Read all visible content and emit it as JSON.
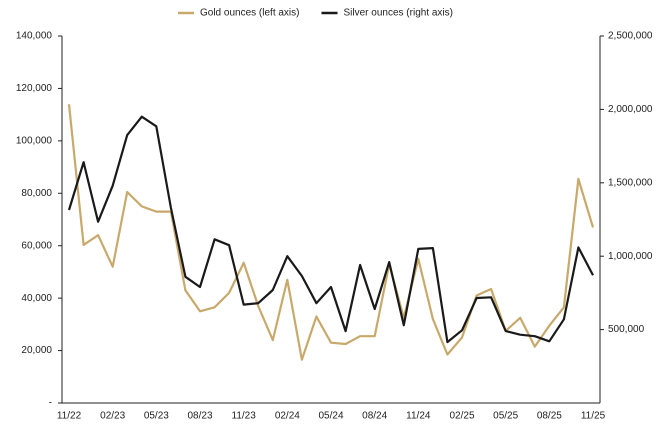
{
  "chart_data": {
    "type": "line",
    "categories": [
      "11/22",
      null,
      null,
      "02/23",
      null,
      null,
      "05/23",
      null,
      null,
      "08/23",
      null,
      null,
      "11/23",
      null,
      null,
      "02/24",
      null,
      null,
      "05/24",
      null,
      null,
      "08/24",
      null,
      null,
      "11/24",
      null,
      null,
      "02/25",
      null,
      null,
      "05/25",
      null,
      null,
      "08/25",
      null,
      null,
      "11/25"
    ],
    "series": [
      {
        "name": "Gold ounces (left axis)",
        "color": "#c9a96b",
        "axis": "y",
        "values": [
          114000,
          60300,
          64000,
          52000,
          80500,
          75000,
          73000,
          73000,
          43000,
          35000,
          36500,
          42000,
          53500,
          37000,
          24000,
          47000,
          16500,
          33000,
          23000,
          22500,
          25500,
          25500,
          53000,
          32500,
          55000,
          32000,
          18500,
          25000,
          41000,
          43500,
          27500,
          32500,
          21500,
          29500,
          36500,
          85500,
          67000
        ]
      },
      {
        "name": "Silver ounces (right axis)",
        "color": "#1a1a1a",
        "axis": "y2",
        "values": [
          1315000,
          1640000,
          1235000,
          1480000,
          1825000,
          1950000,
          1885000,
          1330000,
          860000,
          790000,
          1115000,
          1075000,
          670000,
          680000,
          770000,
          1000000,
          865000,
          680000,
          790000,
          490000,
          940000,
          640000,
          960000,
          530000,
          1050000,
          1055000,
          415000,
          495000,
          715000,
          720000,
          490000,
          465000,
          455000,
          420000,
          570000,
          1060000,
          870000
        ]
      }
    ],
    "ylim": [
      0,
      140000
    ],
    "yticks": [
      {
        "value": 0,
        "label": "-"
      },
      {
        "value": 20000,
        "label": "20,000"
      },
      {
        "value": 40000,
        "label": "40,000"
      },
      {
        "value": 60000,
        "label": "60,000"
      },
      {
        "value": 80000,
        "label": "80,000"
      },
      {
        "value": 100000,
        "label": "100,000"
      },
      {
        "value": 120000,
        "label": "120,000"
      },
      {
        "value": 140000,
        "label": "140,000"
      }
    ],
    "y2lim": [
      0,
      2500000
    ],
    "y2ticks": [
      {
        "value": 500000,
        "label": "500,000"
      },
      {
        "value": 1000000,
        "label": "1,000,000"
      },
      {
        "value": 1500000,
        "label": "1,500,000"
      },
      {
        "value": 2000000,
        "label": "2,000,000"
      },
      {
        "value": 2500000,
        "label": "2,500,000"
      }
    ],
    "legend": "top",
    "grid": false
  }
}
